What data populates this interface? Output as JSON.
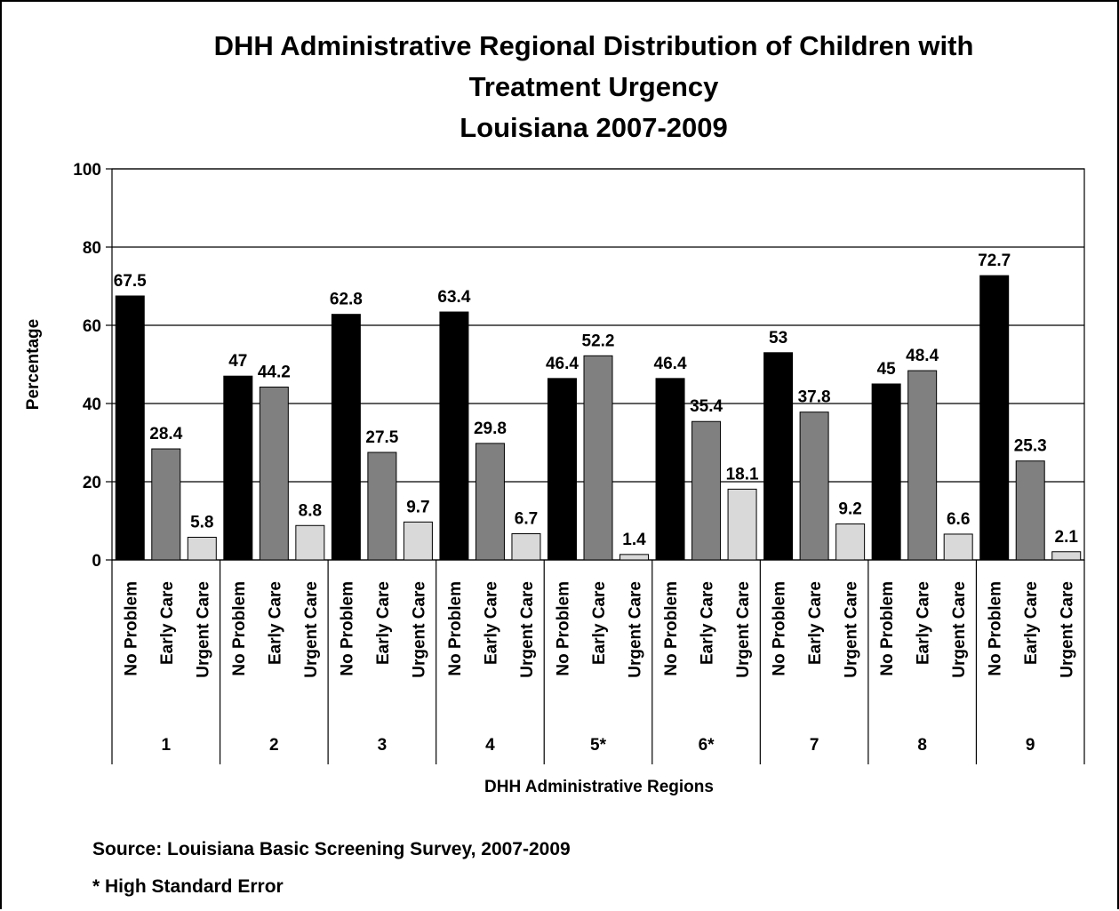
{
  "chart_data": {
    "type": "bar",
    "title": [
      "DHH Administrative Regional Distribution of Children with",
      "Treatment Urgency",
      "Louisiana 2007-2009"
    ],
    "xlabel": "DHH Administrative Regions",
    "ylabel": "Percentage",
    "ylim": [
      0,
      100
    ],
    "yticks": [
      "0",
      "20",
      "40",
      "60",
      "80",
      "100"
    ],
    "grid": true,
    "regions": [
      "1",
      "2",
      "3",
      "4",
      "5*",
      "6*",
      "7",
      "8",
      "9"
    ],
    "subcategories": [
      "No Problem",
      "Early Care",
      "Urgent Care"
    ],
    "series": [
      {
        "name": "No Problem",
        "color": "#000000",
        "values": [
          67.5,
          47,
          62.8,
          63.4,
          46.4,
          46.4,
          53,
          45,
          72.7
        ],
        "labels": [
          "67.5",
          "47",
          "62.8",
          "63.4",
          "46.4",
          "46.4",
          "53",
          "45",
          "72.7"
        ]
      },
      {
        "name": "Early Care",
        "color": "#808080",
        "values": [
          28.4,
          44.2,
          27.5,
          29.8,
          52.2,
          35.4,
          37.8,
          48.4,
          25.3
        ],
        "labels": [
          "28.4",
          "44.2",
          "27.5",
          "29.8",
          "52.2",
          "35.4",
          "37.8",
          "48.4",
          "25.3"
        ]
      },
      {
        "name": "Urgent Care",
        "color": "#d9d9d9",
        "values": [
          5.8,
          8.8,
          9.7,
          6.7,
          1.4,
          18.1,
          9.2,
          6.6,
          2.1
        ],
        "labels": [
          "5.8",
          "8.8",
          "9.7",
          "6.7",
          "1.4",
          "18.1",
          "9.2",
          "6.6",
          "2.1"
        ]
      }
    ]
  },
  "notes": {
    "source": "Source: Louisiana Basic Screening Survey, 2007-2009",
    "footnote": "* High Standard Error"
  }
}
